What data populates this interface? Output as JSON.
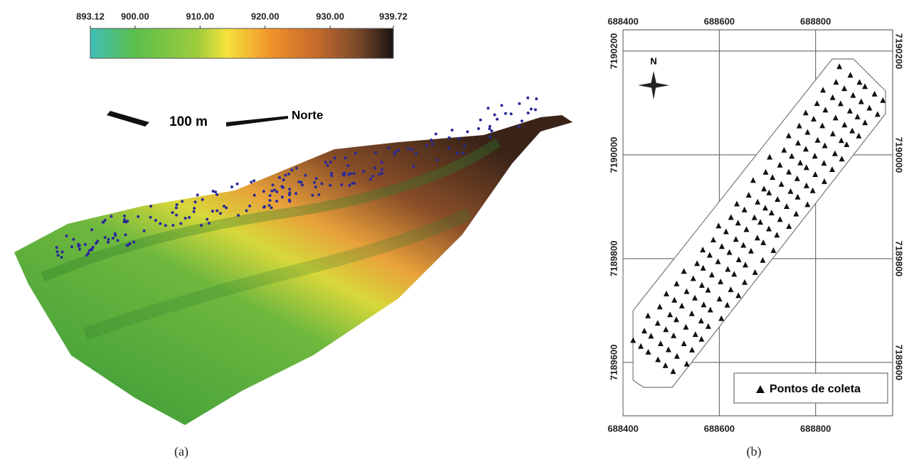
{
  "panel_a": {
    "colorbar_ticks": [
      893.12,
      {
        "value": 900,
        "label": "900.00"
      },
      {
        "value": 910,
        "label": "910.00"
      },
      {
        "value": 920,
        "label": "920.00"
      },
      {
        "value": 930,
        "label": "930.00"
      },
      939.72
    ],
    "colorbar_lim": [
      893.12,
      939.72
    ],
    "scale_label": "100 m",
    "north_label": "Norte",
    "caption": "(a)"
  },
  "panel_b": {
    "xlim": [
      688400,
      688960
    ],
    "ylim": [
      7189497,
      7190241
    ],
    "xticks": [
      688400,
      688600,
      688800
    ],
    "yticks": [
      7189600,
      7189800,
      7190000,
      7190200
    ],
    "north_label": "N",
    "legend": "Pontos de coleta",
    "caption": "(b)"
  }
}
